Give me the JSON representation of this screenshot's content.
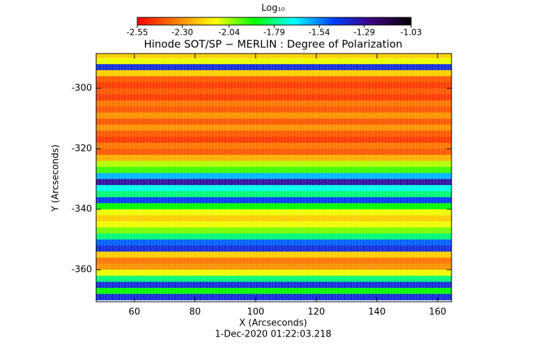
{
  "chart_data": {
    "type": "heatmap",
    "title": "Hinode SOT/SP − MERLIN : Degree of Polarization",
    "x_label": "X (Arcseconds)",
    "y_label": "Y (Arcseconds)",
    "footer": "1-Dec-2020 01:22:03.218",
    "colorbar_label": "Log₁₀",
    "colormap": [
      "#ff0000",
      "#ff8000",
      "#ffff00",
      "#00ff00",
      "#00ffff",
      "#0040ff",
      "#400080",
      "#000000"
    ],
    "zlim": [
      -2.55,
      -1.03
    ],
    "zticks": [
      -2.55,
      {
        "value": -2.3,
        "label": "-2.30"
      },
      -2.04,
      -1.79,
      -1.54,
      -1.29,
      -1.03
    ],
    "xlim": [
      47.4,
      164.6
    ],
    "xticks": [
      60,
      80,
      100,
      120,
      140,
      160
    ],
    "ylim": [
      -370.6,
      -288.5
    ],
    "yticks": [
      -300,
      -320,
      -340,
      -360
    ],
    "y": [
      -289,
      -291,
      -293,
      -295,
      -297,
      -299,
      -301,
      -303,
      -305,
      -307,
      -309,
      -311,
      -313,
      -315,
      -317,
      -319,
      -321,
      -323,
      -325,
      -327,
      -329,
      -331,
      -333,
      -335,
      -337,
      -339,
      -341,
      -343,
      -345,
      -347,
      -349,
      -351,
      -353,
      -355,
      -357,
      -359,
      -361,
      -363,
      -365,
      -367,
      -369
    ],
    "values": [
      -2.2,
      -2.1,
      -1.4,
      -2.2,
      -2.4,
      -2.45,
      -2.4,
      -2.45,
      -2.35,
      -2.4,
      -2.3,
      -2.4,
      -2.3,
      -2.4,
      -2.45,
      -2.35,
      -2.4,
      -2.25,
      -2.05,
      -1.95,
      -1.6,
      -1.3,
      -1.7,
      -1.8,
      -1.45,
      -1.9,
      -2.1,
      -2.2,
      -2.1,
      -2.0,
      -1.8,
      -1.5,
      -1.4,
      -2.2,
      -2.35,
      -2.3,
      -2.1,
      -1.8,
      -1.4,
      -1.9,
      -1.4
    ]
  }
}
